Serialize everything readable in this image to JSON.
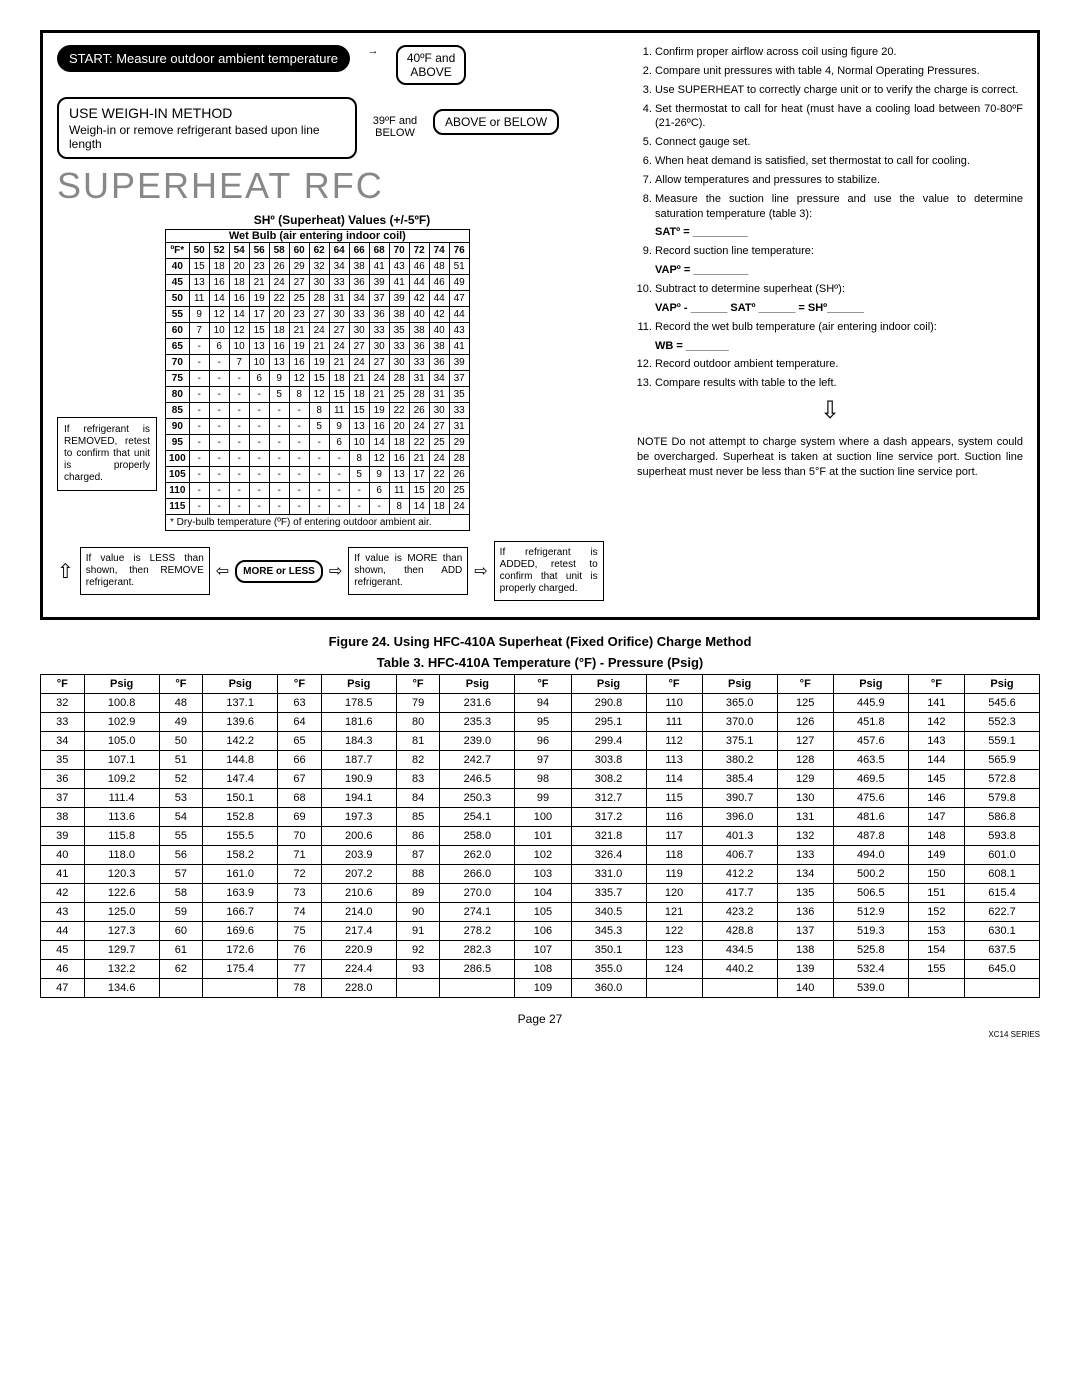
{
  "flow": {
    "start": "START: Measure outdoor ambient temperature",
    "weigh_header": "USE WEIGH-IN METHOD",
    "weigh_body": "Weigh-in or remove refrigerant based upon line length",
    "temp_high": "40ºF and ABOVE",
    "temp_low": "39ºF and BELOW",
    "above_below": "ABOVE or BELOW"
  },
  "rfc_title": "SUPERHEAT RFC",
  "sh_title": "SHº (Superheat) Values (+/-5ºF)",
  "wb_title": "Wet Bulb (air entering indoor coil)",
  "sh_cols": [
    "ºF*",
    "50",
    "52",
    "54",
    "56",
    "58",
    "60",
    "62",
    "64",
    "66",
    "68",
    "70",
    "72",
    "74",
    "76"
  ],
  "sh_rows": [
    [
      "40",
      "15",
      "18",
      "20",
      "23",
      "26",
      "29",
      "32",
      "34",
      "38",
      "41",
      "43",
      "46",
      "48",
      "51"
    ],
    [
      "45",
      "13",
      "16",
      "18",
      "21",
      "24",
      "27",
      "30",
      "33",
      "36",
      "39",
      "41",
      "44",
      "46",
      "49"
    ],
    [
      "50",
      "11",
      "14",
      "16",
      "19",
      "22",
      "25",
      "28",
      "31",
      "34",
      "37",
      "39",
      "42",
      "44",
      "47"
    ],
    [
      "55",
      "9",
      "12",
      "14",
      "17",
      "20",
      "23",
      "27",
      "30",
      "33",
      "36",
      "38",
      "40",
      "42",
      "44"
    ],
    [
      "60",
      "7",
      "10",
      "12",
      "15",
      "18",
      "21",
      "24",
      "27",
      "30",
      "33",
      "35",
      "38",
      "40",
      "43"
    ],
    [
      "65",
      "-",
      "6",
      "10",
      "13",
      "16",
      "19",
      "21",
      "24",
      "27",
      "30",
      "33",
      "36",
      "38",
      "41"
    ],
    [
      "70",
      "-",
      "-",
      "7",
      "10",
      "13",
      "16",
      "19",
      "21",
      "24",
      "27",
      "30",
      "33",
      "36",
      "39"
    ],
    [
      "75",
      "-",
      "-",
      "-",
      "6",
      "9",
      "12",
      "15",
      "18",
      "21",
      "24",
      "28",
      "31",
      "34",
      "37"
    ],
    [
      "80",
      "-",
      "-",
      "-",
      "-",
      "5",
      "8",
      "12",
      "15",
      "18",
      "21",
      "25",
      "28",
      "31",
      "35"
    ],
    [
      "85",
      "-",
      "-",
      "-",
      "-",
      "-",
      "-",
      "8",
      "11",
      "15",
      "19",
      "22",
      "26",
      "30",
      "33"
    ],
    [
      "90",
      "-",
      "-",
      "-",
      "-",
      "-",
      "-",
      "5",
      "9",
      "13",
      "16",
      "20",
      "24",
      "27",
      "31"
    ],
    [
      "95",
      "-",
      "-",
      "-",
      "-",
      "-",
      "-",
      "-",
      "6",
      "10",
      "14",
      "18",
      "22",
      "25",
      "29"
    ],
    [
      "100",
      "-",
      "-",
      "-",
      "-",
      "-",
      "-",
      "-",
      "-",
      "8",
      "12",
      "16",
      "21",
      "24",
      "28"
    ],
    [
      "105",
      "-",
      "-",
      "-",
      "-",
      "-",
      "-",
      "-",
      "-",
      "5",
      "9",
      "13",
      "17",
      "22",
      "26"
    ],
    [
      "110",
      "-",
      "-",
      "-",
      "-",
      "-",
      "-",
      "-",
      "-",
      "-",
      "6",
      "11",
      "15",
      "20",
      "25"
    ],
    [
      "115",
      "-",
      "-",
      "-",
      "-",
      "-",
      "-",
      "-",
      "-",
      "-",
      "-",
      "8",
      "14",
      "18",
      "24"
    ]
  ],
  "sh_foot": "* Dry-bulb temperature (ºF) of entering outdoor ambient air.",
  "left_note": "If refrigerant is REMOVED, retest to confirm that unit is properly charged.",
  "actions": {
    "less": "If value is LESS than shown, then REMOVE refrigerant.",
    "more_less": "MORE or LESS",
    "more": "If value is MORE than shown, then ADD refrigerant.",
    "added": "If refrigerant is ADDED, retest to confirm that unit is properly charged."
  },
  "procedure": [
    "Confirm proper airflow across coil using figure 20.",
    "Compare unit pressures with table 4, Normal Operating Pressures.",
    "Use SUPERHEAT to correctly charge unit or to verify the charge is correct.",
    "Set thermostat to call for heat (must have a cooling load between 70-80ºF (21-26ºC).",
    "Connect gauge set.",
    "When heat demand is satisfied, set thermostat to call for cooling.",
    "Allow temperatures and pressures to stabilize.",
    "Measure the suction line pressure and use the value to determine saturation temperature (table 3):"
  ],
  "sat_line": "SATº = _________",
  "proc9": "Record suction line temperature:",
  "vap_line": "VAPº = _________",
  "proc10": "Subtract to determine superheat (SHº):",
  "calc_line": "VAPº - ______ SATº ______ = SHº______",
  "proc11": "Record the wet bulb temperature (air entering indoor coil):",
  "wb_line": "WB = _______",
  "proc12": "Record outdoor ambient temperature.",
  "proc13": "Compare results with table to the left.",
  "note": "NOTE   Do not attempt to charge system where a dash appears, system could be overcharged. Superheat is taken at suction line service port. Suction line superheat must never be less than 5°F at the suction line service port.",
  "fig_caption": "Figure 24. Using HFC-410A Superheat (Fixed Orifice) Charge Method",
  "tbl_caption": "Table 3. HFC-410A Temperature (°F) - Pressure (Psig)",
  "press_headers": [
    "°F",
    "Psig",
    "°F",
    "Psig",
    "°F",
    "Psig",
    "°F",
    "Psig",
    "°F",
    "Psig",
    "°F",
    "Psig",
    "°F",
    "Psig",
    "°F",
    "Psig"
  ],
  "press_rows": [
    [
      "32",
      "100.8",
      "48",
      "137.1",
      "63",
      "178.5",
      "79",
      "231.6",
      "94",
      "290.8",
      "110",
      "365.0",
      "125",
      "445.9",
      "141",
      "545.6"
    ],
    [
      "33",
      "102.9",
      "49",
      "139.6",
      "64",
      "181.6",
      "80",
      "235.3",
      "95",
      "295.1",
      "111",
      "370.0",
      "126",
      "451.8",
      "142",
      "552.3"
    ],
    [
      "34",
      "105.0",
      "50",
      "142.2",
      "65",
      "184.3",
      "81",
      "239.0",
      "96",
      "299.4",
      "112",
      "375.1",
      "127",
      "457.6",
      "143",
      "559.1"
    ],
    [
      "35",
      "107.1",
      "51",
      "144.8",
      "66",
      "187.7",
      "82",
      "242.7",
      "97",
      "303.8",
      "113",
      "380.2",
      "128",
      "463.5",
      "144",
      "565.9"
    ],
    [
      "36",
      "109.2",
      "52",
      "147.4",
      "67",
      "190.9",
      "83",
      "246.5",
      "98",
      "308.2",
      "114",
      "385.4",
      "129",
      "469.5",
      "145",
      "572.8"
    ],
    [
      "37",
      "111.4",
      "53",
      "150.1",
      "68",
      "194.1",
      "84",
      "250.3",
      "99",
      "312.7",
      "115",
      "390.7",
      "130",
      "475.6",
      "146",
      "579.8"
    ],
    [
      "38",
      "113.6",
      "54",
      "152.8",
      "69",
      "197.3",
      "85",
      "254.1",
      "100",
      "317.2",
      "116",
      "396.0",
      "131",
      "481.6",
      "147",
      "586.8"
    ],
    [
      "39",
      "115.8",
      "55",
      "155.5",
      "70",
      "200.6",
      "86",
      "258.0",
      "101",
      "321.8",
      "117",
      "401.3",
      "132",
      "487.8",
      "148",
      "593.8"
    ],
    [
      "40",
      "118.0",
      "56",
      "158.2",
      "71",
      "203.9",
      "87",
      "262.0",
      "102",
      "326.4",
      "118",
      "406.7",
      "133",
      "494.0",
      "149",
      "601.0"
    ],
    [
      "41",
      "120.3",
      "57",
      "161.0",
      "72",
      "207.2",
      "88",
      "266.0",
      "103",
      "331.0",
      "119",
      "412.2",
      "134",
      "500.2",
      "150",
      "608.1"
    ],
    [
      "42",
      "122.6",
      "58",
      "163.9",
      "73",
      "210.6",
      "89",
      "270.0",
      "104",
      "335.7",
      "120",
      "417.7",
      "135",
      "506.5",
      "151",
      "615.4"
    ],
    [
      "43",
      "125.0",
      "59",
      "166.7",
      "74",
      "214.0",
      "90",
      "274.1",
      "105",
      "340.5",
      "121",
      "423.2",
      "136",
      "512.9",
      "152",
      "622.7"
    ],
    [
      "44",
      "127.3",
      "60",
      "169.6",
      "75",
      "217.4",
      "91",
      "278.2",
      "106",
      "345.3",
      "122",
      "428.8",
      "137",
      "519.3",
      "153",
      "630.1"
    ],
    [
      "45",
      "129.7",
      "61",
      "172.6",
      "76",
      "220.9",
      "92",
      "282.3",
      "107",
      "350.1",
      "123",
      "434.5",
      "138",
      "525.8",
      "154",
      "637.5"
    ],
    [
      "46",
      "132.2",
      "62",
      "175.4",
      "77",
      "224.4",
      "93",
      "286.5",
      "108",
      "355.0",
      "124",
      "440.2",
      "139",
      "532.4",
      "155",
      "645.0"
    ],
    [
      "47",
      "134.6",
      "",
      "",
      "78",
      "228.0",
      "",
      "",
      "109",
      "360.0",
      "",
      "",
      "140",
      "539.0",
      "",
      ""
    ]
  ],
  "page_num": "Page 27",
  "series": "XC14 SERIES"
}
